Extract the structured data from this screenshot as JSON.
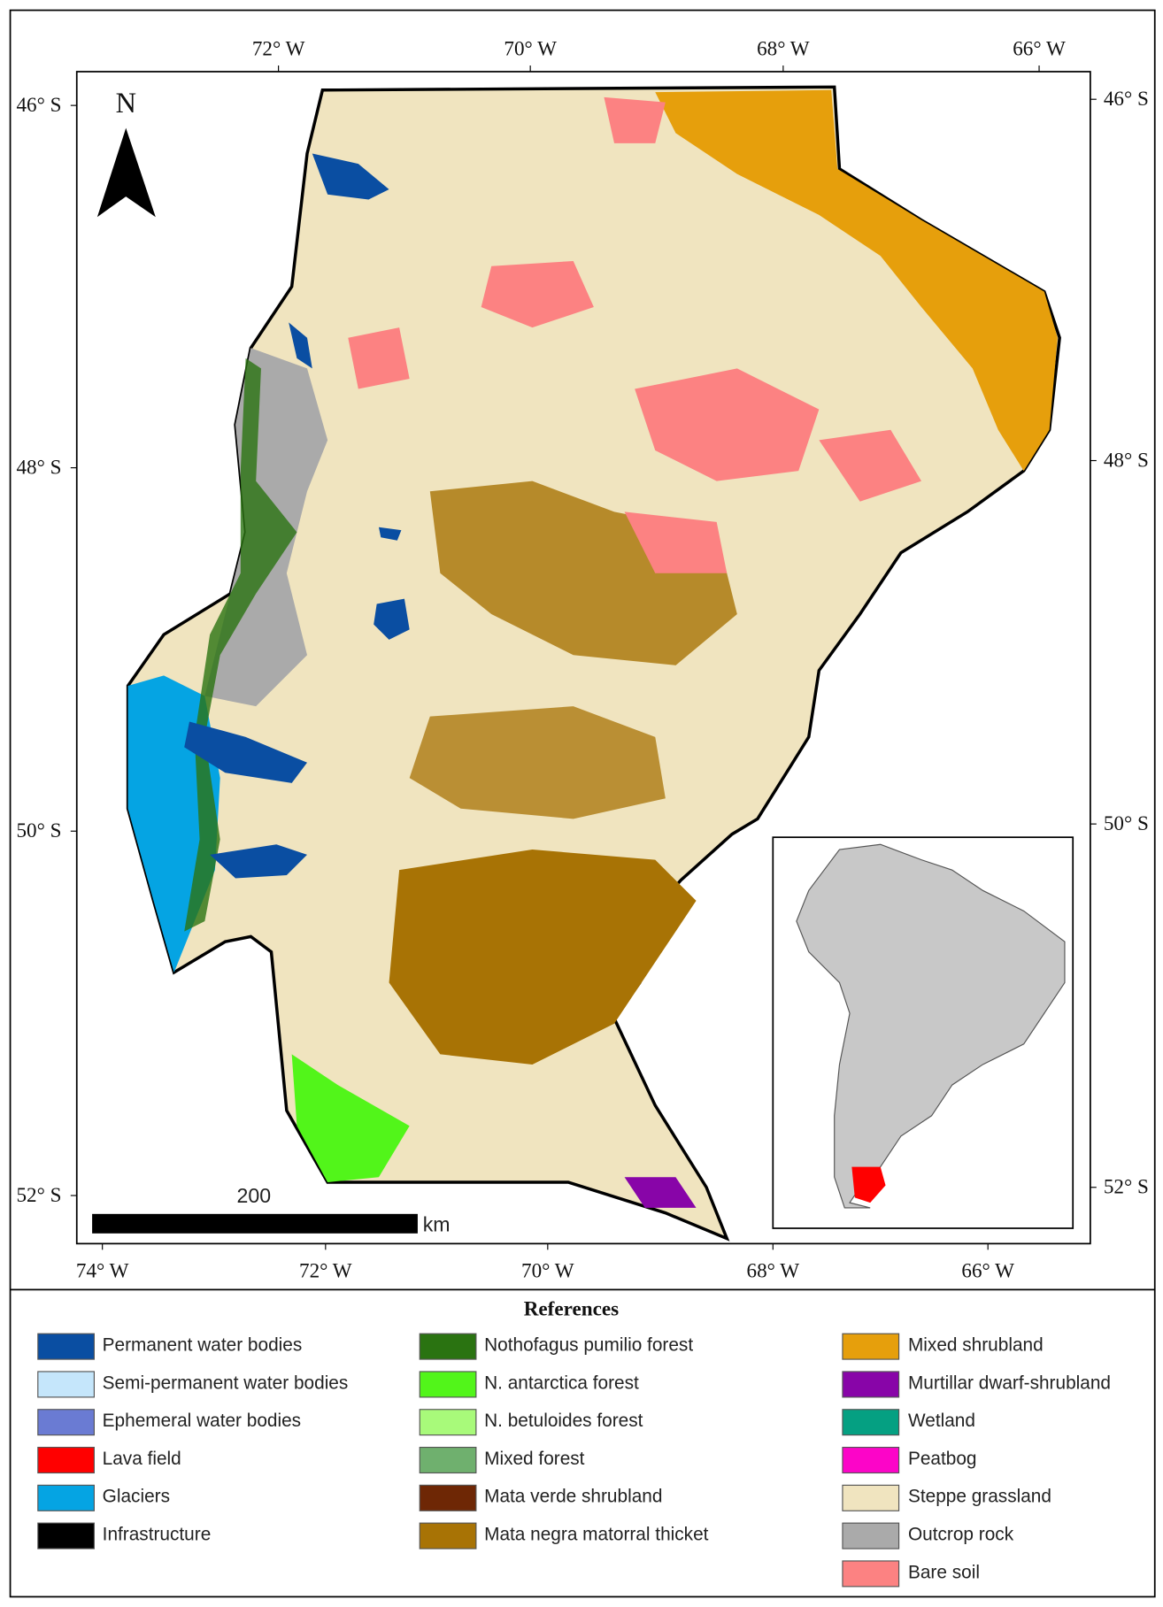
{
  "map": {
    "north": "N",
    "top_labels": [
      "72° W",
      "70° W",
      "68° W",
      "66° W"
    ],
    "bottom_labels": [
      "74° W",
      "72° W",
      "70° W",
      "68° W",
      "66° W"
    ],
    "left_labels": [
      "46° S",
      "48° S",
      "50° S",
      "52° S"
    ],
    "right_labels": [
      "46° S",
      "48° S",
      "50° S",
      "52° S"
    ],
    "scale_value": "200",
    "scale_unit": "km"
  },
  "legend": {
    "title": "References",
    "items": [
      {
        "label": "Permanent water bodies",
        "color": "#0a4ea2"
      },
      {
        "label": "Semi-permanent water bodies",
        "color": "#c5e6fb"
      },
      {
        "label": "Ephemeral water bodies",
        "color": "#6a7bd3"
      },
      {
        "label": "Lava field",
        "color": "#ff0000"
      },
      {
        "label": "Glaciers",
        "color": "#05a4e3"
      },
      {
        "label": "Infrastructure",
        "color": "#000000"
      },
      {
        "label": "Nothofagus pumilio forest",
        "color": "#2a7311"
      },
      {
        "label": "N. antarctica forest",
        "color": "#52f51a"
      },
      {
        "label": "N. betuloides forest",
        "color": "#a8fa7a"
      },
      {
        "label": "Mixed forest",
        "color": "#6fb06e"
      },
      {
        "label": "Mata verde shrubland",
        "color": "#6e2705"
      },
      {
        "label": "Mata negra matorral thicket",
        "color": "#a87305"
      },
      {
        "label": "Mixed shrubland",
        "color": "#e69f0c"
      },
      {
        "label": "Murtillar dwarf-shrubland",
        "color": "#8805a8"
      },
      {
        "label": "Wetland",
        "color": "#05a082"
      },
      {
        "label": "Peatbog",
        "color": "#fc05c8"
      },
      {
        "label": "Steppe grassland",
        "color": "#f0e4bf"
      },
      {
        "label": "Outcrop rock",
        "color": "#aaaaaa"
      },
      {
        "label": "Bare soil",
        "color": "#fc8282"
      }
    ]
  }
}
